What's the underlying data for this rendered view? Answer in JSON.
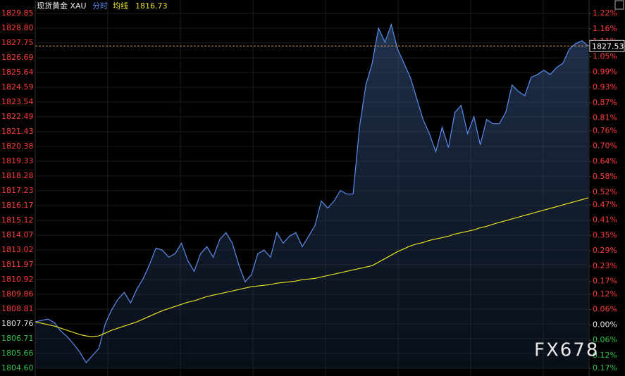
{
  "header": {
    "instrument": "现货黄金 XAU",
    "mode": "分时",
    "ma_label": "均线"
  },
  "watermark": "FX678",
  "chart_data": {
    "type": "line",
    "series": [
      {
        "name": "现货黄金 XAU",
        "color": "#5b8def",
        "area": true,
        "values": [
          1807.9,
          1808.0,
          1808.1,
          1807.85,
          1807.25,
          1806.85,
          1806.35,
          1805.75,
          1805.0,
          1805.5,
          1806.0,
          1807.75,
          1808.75,
          1809.5,
          1810.0,
          1809.25,
          1810.25,
          1811.0,
          1812.0,
          1813.15,
          1813.0,
          1812.5,
          1812.75,
          1813.5,
          1812.25,
          1811.5,
          1812.75,
          1813.25,
          1812.5,
          1813.75,
          1814.25,
          1813.5,
          1812.0,
          1810.75,
          1811.25,
          1812.75,
          1813.0,
          1812.5,
          1814.25,
          1813.5,
          1814.0,
          1814.25,
          1813.25,
          1814.0,
          1814.75,
          1816.5,
          1816.0,
          1816.5,
          1817.25,
          1817.0,
          1817.0,
          1821.75,
          1824.75,
          1826.3,
          1828.8,
          1827.8,
          1829.05,
          1827.3,
          1826.3,
          1825.3,
          1823.8,
          1822.3,
          1821.3,
          1820.0,
          1821.75,
          1820.3,
          1822.8,
          1823.3,
          1821.3,
          1822.5,
          1820.5,
          1822.3,
          1822.0,
          1822.0,
          1822.8,
          1824.75,
          1824.3,
          1824.0,
          1825.3,
          1825.5,
          1825.8,
          1825.5,
          1826.0,
          1826.3,
          1827.3,
          1827.7,
          1827.9,
          1827.53
        ]
      },
      {
        "name": "均线",
        "color": "#e6e020",
        "area": false,
        "values": [
          1807.9,
          1807.8,
          1807.7,
          1807.6,
          1807.45,
          1807.3,
          1807.15,
          1807.0,
          1806.9,
          1806.85,
          1806.9,
          1807.1,
          1807.3,
          1807.45,
          1807.6,
          1807.75,
          1807.9,
          1808.1,
          1808.3,
          1808.5,
          1808.7,
          1808.85,
          1809.0,
          1809.15,
          1809.3,
          1809.4,
          1809.55,
          1809.7,
          1809.8,
          1809.9,
          1810.0,
          1810.1,
          1810.2,
          1810.3,
          1810.4,
          1810.45,
          1810.5,
          1810.55,
          1810.65,
          1810.7,
          1810.75,
          1810.8,
          1810.9,
          1810.95,
          1811.0,
          1811.1,
          1811.2,
          1811.3,
          1811.4,
          1811.5,
          1811.6,
          1811.7,
          1811.8,
          1811.9,
          1812.15,
          1812.4,
          1812.65,
          1812.9,
          1813.1,
          1813.3,
          1813.45,
          1813.55,
          1813.7,
          1813.8,
          1813.9,
          1814.0,
          1814.15,
          1814.25,
          1814.35,
          1814.45,
          1814.6,
          1814.7,
          1814.85,
          1814.98,
          1815.1,
          1815.23,
          1815.35,
          1815.48,
          1815.6,
          1815.73,
          1815.85,
          1815.98,
          1816.1,
          1816.23,
          1816.35,
          1816.48,
          1816.6,
          1816.73
        ]
      }
    ],
    "ylim": [
      1804.6,
      1829.85
    ],
    "yticks": [
      1829.85,
      {
        "value": 1828.8,
        "label": "1828.80"
      },
      1827.75,
      1826.69,
      1825.64,
      1824.59,
      1823.54,
      1822.49,
      1821.43,
      1820.38,
      1819.33,
      1818.28,
      1817.23,
      1816.17,
      1815.12,
      1814.07,
      1813.02,
      1811.97,
      1810.92,
      1809.86,
      1808.81,
      1807.76,
      1806.71,
      1805.66,
      {
        "value": 1804.6,
        "label": "1804.60"
      }
    ],
    "y2lim": [
      -0.17,
      1.22
    ],
    "y2ticks": [
      {
        "value": 1.22,
        "label": "1.22%"
      },
      {
        "value": 1.16,
        "label": "1.16%"
      },
      {
        "value": 1.11,
        "label": "1.11%"
      },
      {
        "value": 1.05,
        "label": "1.05%"
      },
      {
        "value": 0.99,
        "label": "0.99%"
      },
      {
        "value": 0.93,
        "label": "0.93%"
      },
      {
        "value": 0.87,
        "label": "0.87%"
      },
      {
        "value": 0.81,
        "label": "0.81%"
      },
      {
        "value": 0.76,
        "label": "0.76%"
      },
      {
        "value": 0.7,
        "label": "0.70%"
      },
      {
        "value": 0.64,
        "label": "0.64%"
      },
      {
        "value": 0.58,
        "label": "0.58%"
      },
      {
        "value": 0.52,
        "label": "0.52%"
      },
      {
        "value": 0.47,
        "label": "0.47%"
      },
      {
        "value": 0.41,
        "label": "0.41%"
      },
      {
        "value": 0.35,
        "label": "0.35%"
      },
      {
        "value": 0.29,
        "label": "0.29%"
      },
      {
        "value": 0.23,
        "label": "0.23%"
      },
      {
        "value": 0.17,
        "label": "0.17%"
      },
      {
        "value": 0.12,
        "label": "0.12%"
      },
      {
        "value": 0.06,
        "label": "0.06%"
      },
      {
        "value": 0,
        "label": "0.00%"
      },
      {
        "value": -0.06,
        "label": "0.06%"
      },
      {
        "value": -0.12,
        "label": "0.12%"
      },
      {
        "value": -0.17,
        "label": "0.17%"
      }
    ],
    "grid": true,
    "up_color": "#ff3c3c",
    "down_color": "#2fc24a",
    "flat_color": "#e0e0e0"
  }
}
